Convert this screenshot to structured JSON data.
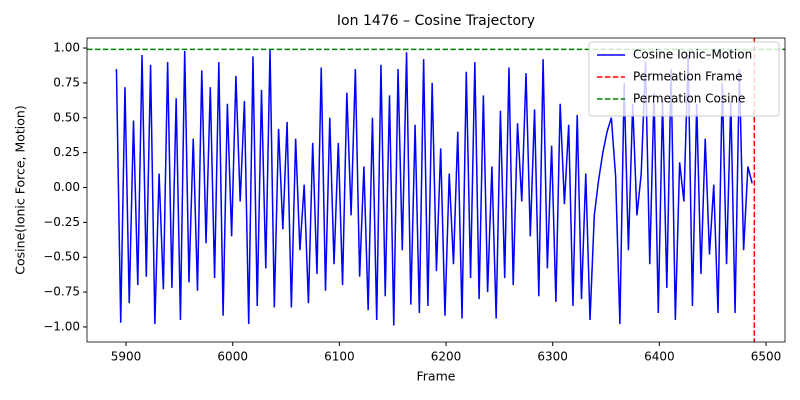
{
  "chart_data": {
    "type": "line",
    "title": "Ion 1476 – Cosine Trajectory",
    "x_label": "Frame",
    "y_label": "Cosine(Ionic Force, Motion)",
    "x": [
      5891,
      5895,
      5899,
      5903,
      5907,
      5911,
      5915,
      5919,
      5923,
      5927,
      5931,
      5935,
      5939,
      5943,
      5947,
      5951,
      5955,
      5959,
      5963,
      5967,
      5971,
      5975,
      5979,
      5983,
      5987,
      5991,
      5995,
      5999,
      6003,
      6007,
      6011,
      6015,
      6019,
      6023,
      6027,
      6031,
      6035,
      6039,
      6043,
      6047,
      6051,
      6055,
      6059,
      6063,
      6067,
      6071,
      6075,
      6079,
      6083,
      6087,
      6091,
      6095,
      6099,
      6103,
      6107,
      6111,
      6115,
      6119,
      6123,
      6127,
      6131,
      6135,
      6139,
      6143,
      6147,
      6151,
      6155,
      6159,
      6163,
      6167,
      6171,
      6175,
      6179,
      6183,
      6187,
      6191,
      6195,
      6199,
      6203,
      6207,
      6211,
      6215,
      6219,
      6223,
      6227,
      6231,
      6235,
      6239,
      6243,
      6247,
      6251,
      6255,
      6259,
      6263,
      6267,
      6271,
      6275,
      6279,
      6283,
      6287,
      6291,
      6295,
      6299,
      6303,
      6307,
      6311,
      6315,
      6319,
      6323,
      6327,
      6331,
      6335,
      6339,
      6343,
      6347,
      6351,
      6355,
      6359,
      6363,
      6367,
      6371,
      6375,
      6379,
      6383,
      6387,
      6391,
      6395,
      6399,
      6403,
      6407,
      6411,
      6415,
      6419,
      6423,
      6427,
      6431,
      6435,
      6439,
      6443,
      6447,
      6451,
      6455,
      6459,
      6463,
      6467,
      6471,
      6475,
      6479,
      6483,
      6487
    ],
    "series": [
      {
        "name": "Cosine Ionic–Motion",
        "color": "#0000ff",
        "values": [
          0.85,
          -0.97,
          0.72,
          -0.83,
          0.48,
          -0.7,
          0.95,
          -0.64,
          0.88,
          -0.98,
          0.1,
          -0.73,
          0.9,
          -0.72,
          0.64,
          -0.95,
          0.98,
          -0.68,
          0.35,
          -0.74,
          0.84,
          -0.4,
          0.72,
          -0.65,
          0.9,
          -0.92,
          0.6,
          -0.35,
          0.8,
          -0.1,
          0.62,
          -0.98,
          0.94,
          -0.85,
          0.7,
          -0.58,
          0.99,
          -0.86,
          0.42,
          -0.3,
          0.47,
          -0.86,
          0.35,
          -0.45,
          0.02,
          -0.83,
          0.32,
          -0.62,
          0.86,
          -0.74,
          0.5,
          -0.55,
          0.32,
          -0.7,
          0.68,
          -0.2,
          0.85,
          -0.64,
          0.15,
          -0.88,
          0.5,
          -0.95,
          0.88,
          -0.78,
          0.66,
          -0.99,
          0.85,
          -0.45,
          0.97,
          -0.84,
          0.45,
          -0.9,
          0.92,
          -0.85,
          0.75,
          -0.6,
          0.28,
          -0.92,
          0.1,
          -0.55,
          0.4,
          -0.94,
          0.83,
          -0.65,
          0.9,
          -0.8,
          0.66,
          -0.75,
          0.15,
          -0.94,
          0.55,
          -0.65,
          0.86,
          -0.7,
          0.46,
          -0.1,
          0.82,
          -0.35,
          0.56,
          -0.78,
          0.92,
          -0.58,
          0.3,
          -0.82,
          0.6,
          -0.12,
          0.45,
          -0.85,
          0.52,
          -0.8,
          0.1,
          -0.95,
          -0.2,
          0.05,
          0.25,
          0.4,
          0.5,
          0.08,
          -0.98,
          0.75,
          -0.45,
          0.6,
          -0.2,
          0.1,
          0.9,
          -0.55,
          0.68,
          -0.9,
          0.62,
          -0.72,
          0.85,
          -0.95,
          0.18,
          -0.1,
          0.95,
          -0.85,
          0.6,
          -0.62,
          0.35,
          -0.48,
          0.02,
          -0.9,
          0.75,
          -0.55,
          0.62,
          -0.9,
          0.85,
          -0.45,
          0.15,
          0.03
        ]
      }
    ],
    "reference_lines": [
      {
        "name": "Permeation Frame",
        "color": "#ff0000",
        "axis": "x",
        "value": 6489
      },
      {
        "name": "Permeation Cosine",
        "color": "#008000",
        "axis": "y",
        "value": 0.99
      }
    ],
    "xlim": [
      5863.4,
      6517.8
    ],
    "ylim": [
      -1.108,
      1.072
    ],
    "xticks": [
      5900,
      6000,
      6100,
      6200,
      6300,
      6400,
      6500
    ],
    "yticks": [
      {
        "value": -1,
        "label": "−1.00"
      },
      {
        "value": -0.75,
        "label": "−0.75"
      },
      {
        "value": -0.5,
        "label": "−0.50"
      },
      {
        "value": -0.25,
        "label": "−0.25"
      },
      {
        "value": 0,
        "label": "0.00"
      },
      {
        "value": 0.25,
        "label": "0.25"
      },
      {
        "value": 0.5,
        "label": "0.50"
      },
      {
        "value": 0.75,
        "label": "0.75"
      },
      {
        "value": 1,
        "label": "1.00"
      }
    ],
    "legend": "upper right"
  }
}
